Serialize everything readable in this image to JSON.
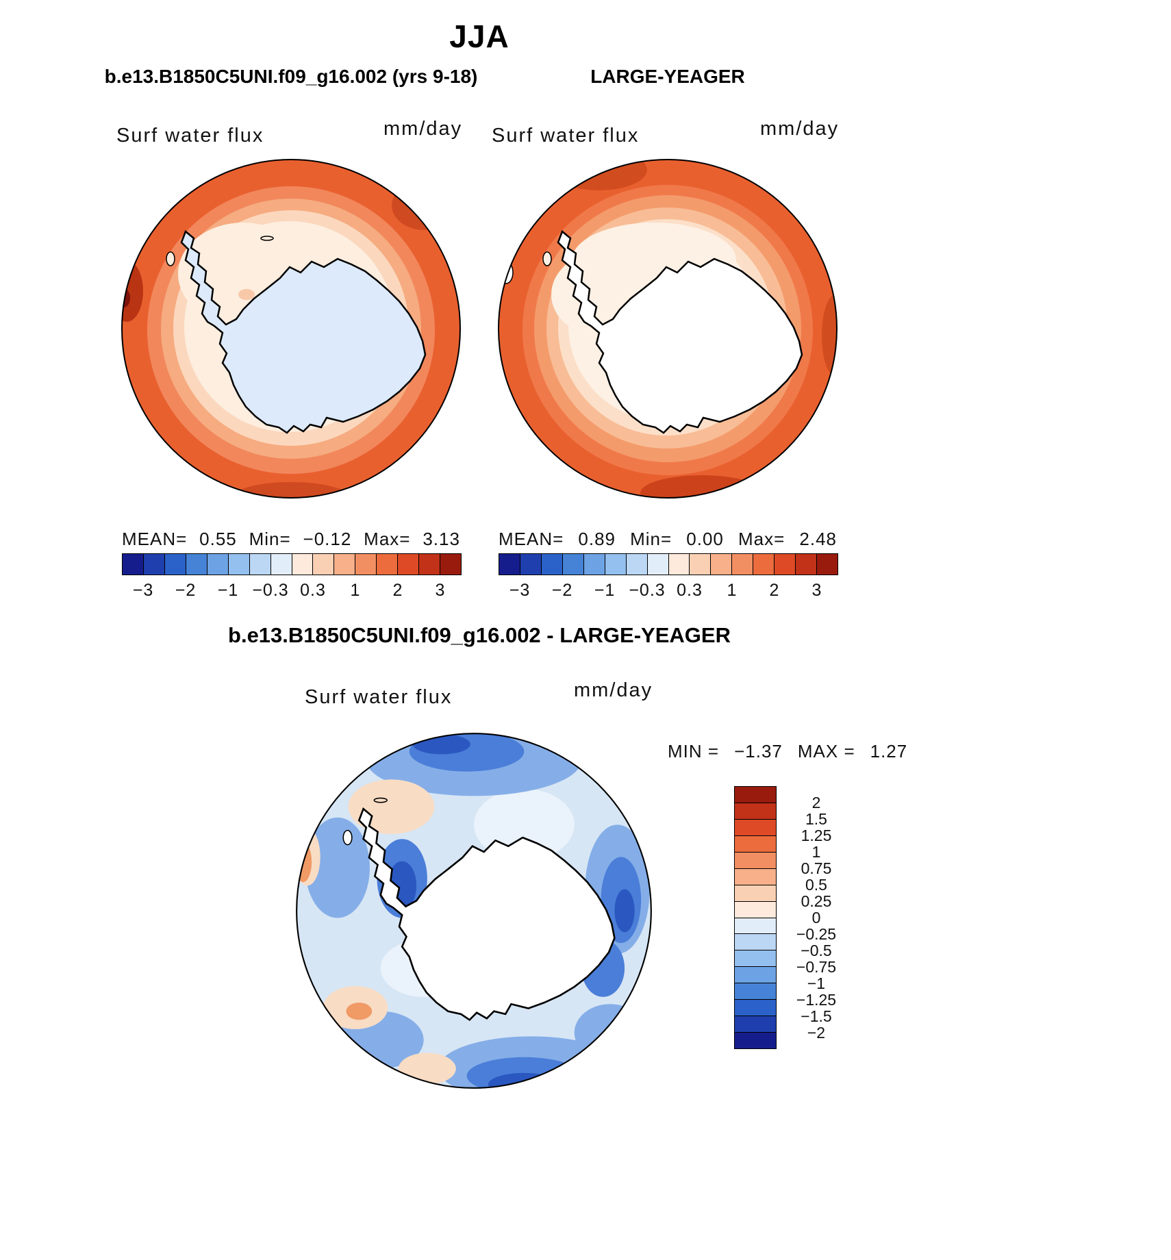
{
  "title": "JJA",
  "panels": [
    {
      "subtitle": "b.e13.B1850C5UNI.f09_g16.002 (yrs 9-18)",
      "field_label": "Surf water flux",
      "units": "mm/day",
      "stats": {
        "mean_label": "MEAN=",
        "mean": "0.55",
        "min_label": "Min=",
        "min": "−0.12",
        "max_label": "Max=",
        "max": "3.13"
      }
    },
    {
      "subtitle": "LARGE-YEAGER",
      "field_label": "Surf water flux",
      "units": "mm/day",
      "stats": {
        "mean_label": "MEAN=",
        "mean": "0.89",
        "min_label": "Min=",
        "min": "0.00",
        "max_label": "Max=",
        "max": "2.48"
      }
    }
  ],
  "colorbar": {
    "ticks": [
      "−3",
      "−2",
      "−1",
      "−0.3",
      "0.3",
      "1",
      "2",
      "3"
    ],
    "colors": [
      "#151d8c",
      "#1f3fae",
      "#2b62c9",
      "#4683d6",
      "#6da3e4",
      "#93c0ee",
      "#bbd7f4",
      "#e2edfa",
      "#fdeadc",
      "#fad0b4",
      "#f7b08a",
      "#f28f62",
      "#ec6c3e",
      "#de4a26",
      "#c13218",
      "#991b0d"
    ]
  },
  "diff": {
    "title": "b.e13.B1850C5UNI.f09_g16.002 - LARGE-YEAGER",
    "field_label": "Surf water flux",
    "units": "mm/day",
    "min_label": "MIN =",
    "min_value": "−1.37",
    "max_label": "MAX =",
    "max_value": "1.27",
    "colorbar_labels": [
      "2",
      "1.5",
      "1.25",
      "1",
      "0.75",
      "0.5",
      "0.25",
      "0",
      "−0.25",
      "−0.5",
      "−0.75",
      "−1",
      "−1.25",
      "−1.5",
      "−2"
    ],
    "colorbar_colors": [
      "#991b0d",
      "#c13218",
      "#de4a26",
      "#ec6c3e",
      "#f28f62",
      "#f7b08a",
      "#fad0b4",
      "#fdeadc",
      "#e2edfa",
      "#bbd7f4",
      "#93c0ee",
      "#6da3e4",
      "#4683d6",
      "#2b62c9",
      "#1f3fae",
      "#151d8c"
    ]
  },
  "chart_data": {
    "type": "heatmap",
    "season": "JJA",
    "maps": [
      {
        "title": "b.e13.B1850C5UNI.f09_g16.002 (yrs 9-18)",
        "variable": "Surf water flux",
        "units": "mm/day",
        "projection": "south-polar-stereographic",
        "mean": 0.55,
        "min": -0.12,
        "max": 3.13,
        "contour_levels_labeled": [
          -3,
          -2,
          -1,
          -0.3,
          0.3,
          1,
          2,
          3
        ]
      },
      {
        "title": "LARGE-YEAGER",
        "variable": "Surf water flux",
        "units": "mm/day",
        "projection": "south-polar-stereographic",
        "mean": 0.89,
        "min": 0.0,
        "max": 2.48,
        "contour_levels_labeled": [
          -3,
          -2,
          -1,
          -0.3,
          0.3,
          1,
          2,
          3
        ]
      },
      {
        "title": "b.e13.B1850C5UNI.f09_g16.002 - LARGE-YEAGER",
        "variable": "Surf water flux",
        "units": "mm/day",
        "projection": "south-polar-stereographic",
        "min": -1.37,
        "max": 1.27,
        "contour_levels": [
          -2,
          -1.5,
          -1.25,
          -1,
          -0.75,
          -0.5,
          -0.25,
          0,
          0.25,
          0.5,
          0.75,
          1,
          1.25,
          1.5,
          2
        ]
      }
    ],
    "legend_position": "below each map (horizontal) and right of difference map (vertical)",
    "grid": false
  }
}
